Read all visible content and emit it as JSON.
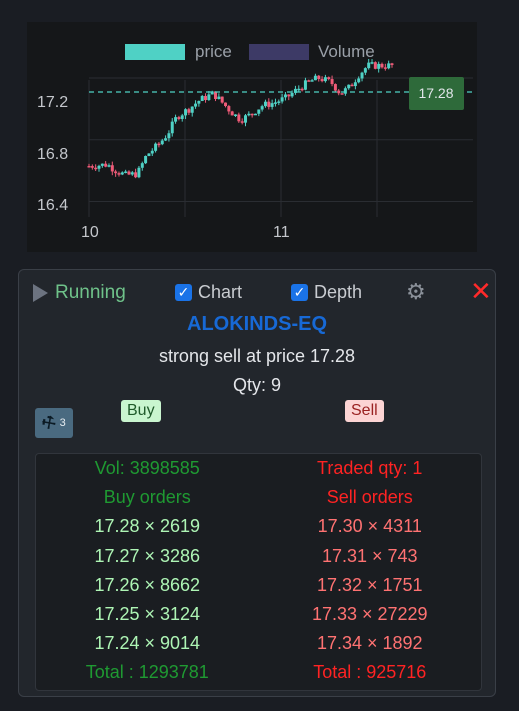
{
  "chart_data": {
    "type": "candlestick",
    "legend": [
      {
        "name": "price",
        "color": "#4fd1c5"
      },
      {
        "name": "Volume",
        "color": "#3d3a66"
      }
    ],
    "y_ticks": [
      "17.2",
      "16.8",
      "16.4"
    ],
    "x_ticks": [
      "10",
      "11"
    ],
    "last_price_label": "17.28",
    "last_price": 17.28,
    "ylim": [
      16.3,
      17.42
    ]
  },
  "widget": {
    "status": "Running",
    "chart_toggle": "Chart",
    "depth_toggle": "Depth",
    "checkmark": "✓",
    "gear_icon": "⚙",
    "close_icon": "✕",
    "symbol": "ALOKINDS-EQ",
    "signal": "strong sell at price 17.28",
    "qty": "Qty: 9",
    "hammer_count": "3",
    "buy_label": "Buy",
    "sell_label": "Sell"
  },
  "order_book": {
    "volume": "Vol: 3898585",
    "traded_qty": "Traded qty: 1",
    "buy_header": "Buy orders",
    "sell_header": "Sell orders",
    "buy_orders": [
      "17.28 × 2619",
      "17.27 × 3286",
      "17.26 × 8662",
      "17.25 × 3124",
      "17.24 × 9014"
    ],
    "sell_orders": [
      "17.30 × 4311",
      "17.31 × 743",
      "17.32 × 1751",
      "17.33 × 27229",
      "17.34 × 1892"
    ],
    "buy_total": "Total : 1293781",
    "sell_total": "Total : 925716"
  }
}
